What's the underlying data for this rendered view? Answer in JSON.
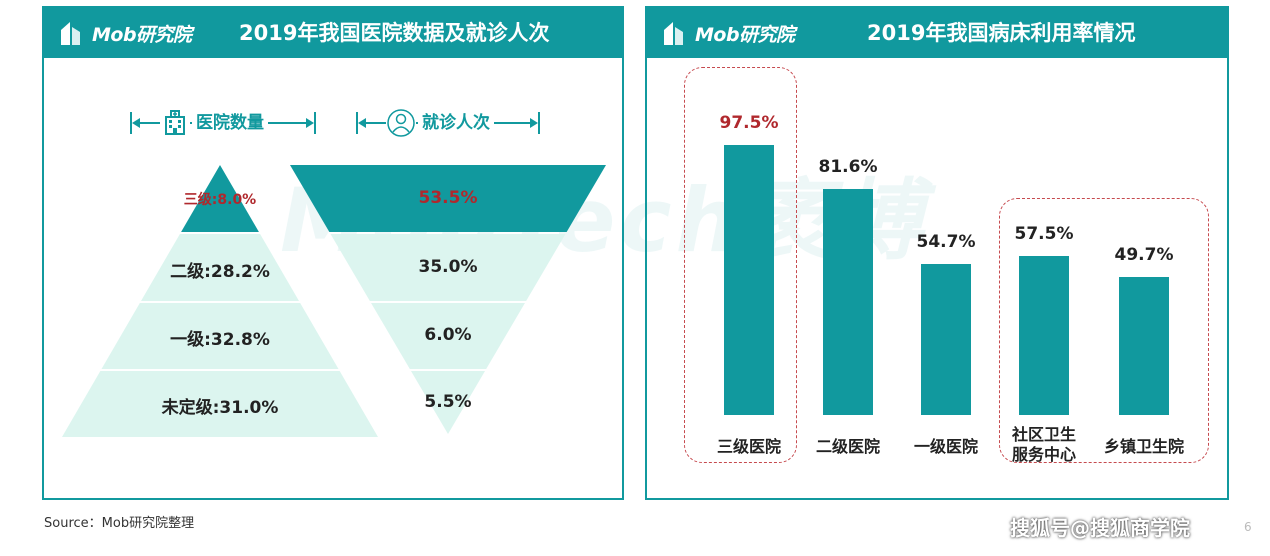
{
  "left_panel": {
    "brand": "Mob研究院",
    "title": "2019年我国医院数据及就诊人次",
    "hospital_header": "医院数量",
    "visit_header": "就诊人次"
  },
  "right_panel": {
    "brand": "Mob研究院",
    "title": "2019年我国病床利用率情况"
  },
  "watermark": "MobTech袤博",
  "source": "Source：Mob研究院整理",
  "credit": "搜狐号@搜狐商学院",
  "page_number": "6",
  "colors": {
    "teal": "#11999e",
    "light_teal": "#dcf5ef",
    "highlight_red": "#b0282d",
    "dash_red": "#c64a4f"
  },
  "chart_data": [
    {
      "type": "bar",
      "subtype": "pyramid",
      "title": "医院数量",
      "categories": [
        "三级",
        "二级",
        "一级",
        "未定级"
      ],
      "values": [
        8.0,
        28.2,
        32.8,
        31.0
      ],
      "labels": [
        "三级:8.0%",
        "二级:28.2%",
        "一级:32.8%",
        "未定级:31.0%"
      ],
      "unit": "%",
      "highlight_index": 0
    },
    {
      "type": "bar",
      "subtype": "funnel",
      "title": "就诊人次",
      "categories": [
        "三级",
        "二级",
        "一级",
        "未定级"
      ],
      "values": [
        53.5,
        35.0,
        6.0,
        5.5
      ],
      "labels": [
        "53.5%",
        "35.0%",
        "6.0%",
        "5.5%"
      ],
      "unit": "%",
      "highlight_index": 0
    },
    {
      "type": "bar",
      "title": "2019年我国病床利用率情况",
      "categories": [
        "三级医院",
        "二级医院",
        "一级医院",
        "社区卫生\n服务中心",
        "乡镇卫生院"
      ],
      "values": [
        97.5,
        81.6,
        54.7,
        57.5,
        49.7
      ],
      "labels": [
        "97.5%",
        "81.6%",
        "54.7%",
        "57.5%",
        "49.7%"
      ],
      "unit": "%",
      "ylim": [
        0,
        100
      ],
      "grid": false,
      "highlight_index": 0,
      "highlight_groups": [
        [
          0
        ],
        [
          3,
          4
        ]
      ]
    }
  ]
}
